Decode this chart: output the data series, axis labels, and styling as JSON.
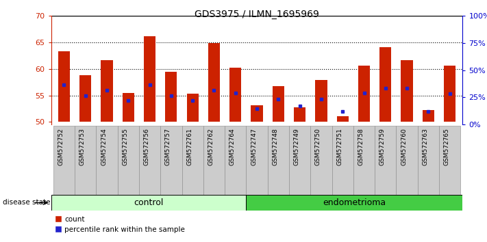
{
  "title": "GDS3975 / ILMN_1695969",
  "samples": [
    "GSM572752",
    "GSM572753",
    "GSM572754",
    "GSM572755",
    "GSM572756",
    "GSM572757",
    "GSM572761",
    "GSM572762",
    "GSM572764",
    "GSM572747",
    "GSM572748",
    "GSM572749",
    "GSM572750",
    "GSM572751",
    "GSM572758",
    "GSM572759",
    "GSM572760",
    "GSM572763",
    "GSM572765"
  ],
  "counts": [
    63.3,
    58.8,
    61.7,
    55.5,
    66.1,
    59.5,
    55.3,
    64.8,
    60.2,
    53.2,
    56.7,
    52.7,
    57.9,
    51.1,
    60.6,
    64.1,
    61.7,
    52.3,
    60.6
  ],
  "percentiles": [
    57.0,
    55.0,
    56.0,
    54.0,
    57.0,
    55.0,
    54.0,
    56.0,
    55.5,
    52.5,
    54.3,
    53.0,
    54.3,
    52.0,
    55.5,
    56.3,
    56.3,
    52.0,
    55.3
  ],
  "n_control": 9,
  "n_endometrioma": 10,
  "ylim_left": [
    49.5,
    70
  ],
  "yticks_left": [
    50,
    55,
    60,
    65,
    70
  ],
  "yticks_right": [
    0,
    25,
    50,
    75,
    100
  ],
  "ytick_labels_right": [
    "0%",
    "25%",
    "50%",
    "75%",
    "100%"
  ],
  "bar_color": "#cc2200",
  "dot_color": "#2222cc",
  "control_bg": "#ccffcc",
  "endometrioma_bg": "#44cc44",
  "sample_area_bg": "#cccccc",
  "bar_width": 0.55,
  "base_value": 50
}
